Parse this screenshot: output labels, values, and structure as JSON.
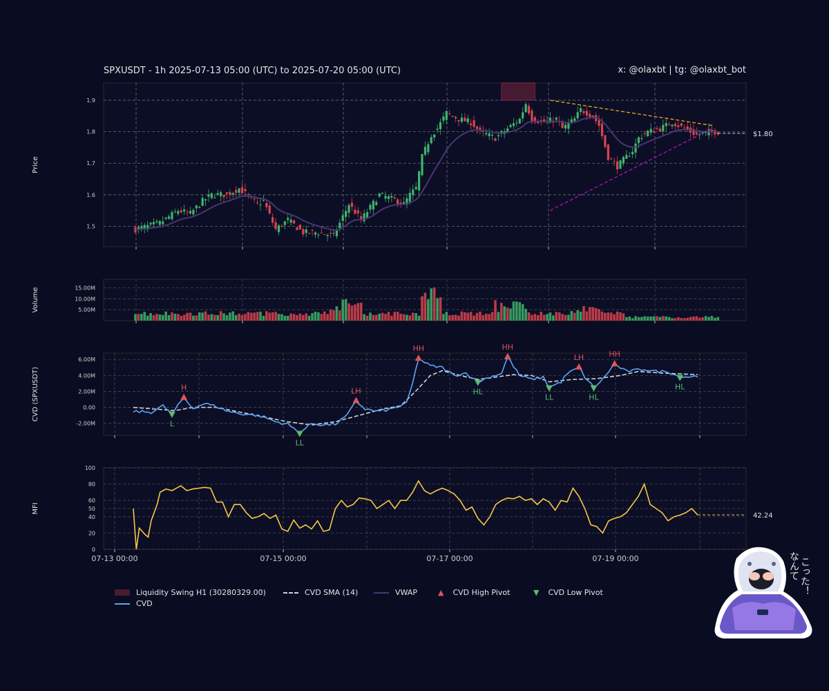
{
  "header": {
    "title": "SPXUSDT - 1h 2025-07-13 05:00 (UTC) to 2025-07-20 05:00 (UTC)",
    "credit": "x: @olaxbt | tg: @olaxbt_bot"
  },
  "colors": {
    "background": "#0a0c21",
    "bull": "#3fb46a",
    "bear": "#d9444f",
    "cvd": "#5aa7f2",
    "cvd_sma": "#cfd4dc",
    "vwap": "#4a3670",
    "mfi": "#f7c744",
    "resistance": "#f2a81d",
    "support": "#b012b8",
    "liquidity_zone": "#5a1f35",
    "pivot_high": "#e0535c",
    "pivot_low": "#5cba6e"
  },
  "chart_data": [
    {
      "panel": "price",
      "type": "candlestick",
      "ylabel": "Price",
      "ylim": [
        1.435,
        1.955
      ],
      "yticks": [
        "1.5",
        "1.6",
        "1.7",
        "1.8",
        "1.9"
      ],
      "x_range": [
        "2025-07-13 05:00",
        "2025-07-20 05:00"
      ],
      "interval": "1h",
      "candle_count": 169,
      "last_price_label": "$1.80",
      "last_price": 1.795,
      "close_anchors": [
        [
          0,
          1.49
        ],
        [
          8,
          1.51
        ],
        [
          14,
          1.55
        ],
        [
          18,
          1.54
        ],
        [
          22,
          1.58
        ],
        [
          25,
          1.6
        ],
        [
          30,
          1.6
        ],
        [
          34,
          1.62
        ],
        [
          40,
          1.57
        ],
        [
          42,
          1.58
        ],
        [
          46,
          1.49
        ],
        [
          50,
          1.52
        ],
        [
          55,
          1.48
        ],
        [
          60,
          1.48
        ],
        [
          65,
          1.47
        ],
        [
          70,
          1.57
        ],
        [
          74,
          1.52
        ],
        [
          80,
          1.6
        ],
        [
          86,
          1.58
        ],
        [
          88,
          1.57
        ],
        [
          90,
          1.6
        ],
        [
          92,
          1.62
        ],
        [
          94,
          1.72
        ],
        [
          97,
          1.79
        ],
        [
          99,
          1.81
        ],
        [
          102,
          1.86
        ],
        [
          106,
          1.84
        ],
        [
          110,
          1.83
        ],
        [
          113,
          1.8
        ],
        [
          118,
          1.78
        ],
        [
          122,
          1.81
        ],
        [
          126,
          1.84
        ],
        [
          128,
          1.89
        ],
        [
          130,
          1.84
        ],
        [
          134,
          1.83
        ],
        [
          138,
          1.84
        ],
        [
          140,
          1.81
        ],
        [
          144,
          1.84
        ],
        [
          146,
          1.87
        ],
        [
          150,
          1.85
        ],
        [
          152,
          1.82
        ],
        [
          155,
          1.72
        ],
        [
          158,
          1.69
        ],
        [
          160,
          1.71
        ],
        [
          163,
          1.74
        ],
        [
          165,
          1.78
        ],
        [
          168,
          1.8
        ],
        [
          172,
          1.81
        ],
        [
          176,
          1.83
        ],
        [
          180,
          1.81
        ],
        [
          184,
          1.79
        ],
        [
          188,
          1.8
        ],
        [
          192,
          1.8
        ]
      ],
      "liquidity_zone": {
        "label": "Liquidity Swing H1 (30280329.00)",
        "low": 1.9,
        "high": 1.955,
        "from_hour": 120,
        "to_hour": 131
      },
      "resistance_line": {
        "from": [
          136,
          1.9
        ],
        "to": [
          189,
          1.82
        ]
      },
      "support_line": {
        "from": [
          136,
          1.55
        ],
        "to": [
          189,
          1.81
        ]
      }
    },
    {
      "panel": "volume",
      "type": "bar",
      "ylabel": "Volume",
      "ylim": [
        0,
        19000000
      ],
      "yticks": [
        "5.00M",
        "10.00M",
        "15.00M"
      ]
    },
    {
      "panel": "cvd",
      "type": "line",
      "ylabel": "CVD (SPXUSDT)",
      "ylim": [
        -3500000,
        6800000
      ],
      "yticks": [
        "-2.00M",
        "0.00",
        "2.00M",
        "4.00M",
        "6.00M"
      ],
      "series": [
        {
          "name": "CVD",
          "anchors": [
            [
              0,
              -0.5
            ],
            [
              6,
              -0.6
            ],
            [
              10,
              0.2
            ],
            [
              13,
              -0.8
            ],
            [
              17,
              1.2
            ],
            [
              20,
              -0.1
            ],
            [
              24,
              0.5
            ],
            [
              28,
              0.1
            ],
            [
              32,
              -0.5
            ],
            [
              36,
              -0.8
            ],
            [
              40,
              -0.9
            ],
            [
              44,
              -1.2
            ],
            [
              48,
              -1.8
            ],
            [
              52,
              -2.1
            ],
            [
              56,
              -3.2
            ],
            [
              60,
              -2.0
            ],
            [
              64,
              -2.2
            ],
            [
              68,
              -2.1
            ],
            [
              72,
              -1.0
            ],
            [
              75,
              0.8
            ],
            [
              78,
              -0.2
            ],
            [
              82,
              -0.5
            ],
            [
              86,
              -0.3
            ],
            [
              90,
              0.2
            ],
            [
              92,
              0.5
            ],
            [
              94,
              3.0
            ],
            [
              96,
              6.1
            ],
            [
              100,
              5.2
            ],
            [
              104,
              5.0
            ],
            [
              108,
              4.0
            ],
            [
              112,
              4.3
            ],
            [
              116,
              3.2
            ],
            [
              120,
              3.8
            ],
            [
              124,
              4.3
            ],
            [
              126,
              6.3
            ],
            [
              130,
              4.0
            ],
            [
              134,
              3.5
            ],
            [
              138,
              3.8
            ],
            [
              140,
              2.5
            ],
            [
              144,
              3.2
            ],
            [
              146,
              4.2
            ],
            [
              150,
              5.0
            ],
            [
              152,
              3.8
            ],
            [
              155,
              2.5
            ],
            [
              158,
              3.5
            ],
            [
              160,
              4.5
            ],
            [
              162,
              5.4
            ],
            [
              166,
              4.5
            ],
            [
              172,
              4.8
            ],
            [
              176,
              4.5
            ],
            [
              180,
              4.5
            ],
            [
              184,
              3.8
            ],
            [
              190,
              3.9
            ]
          ]
        },
        {
          "name": "CVD SMA (14)",
          "anchors": [
            [
              0,
              0.0
            ],
            [
              14,
              -0.4
            ],
            [
              20,
              0.0
            ],
            [
              28,
              0.0
            ],
            [
              36,
              -0.6
            ],
            [
              44,
              -1.2
            ],
            [
              52,
              -1.8
            ],
            [
              60,
              -2.2
            ],
            [
              68,
              -1.8
            ],
            [
              76,
              -1.0
            ],
            [
              84,
              -0.2
            ],
            [
              90,
              0.2
            ],
            [
              95,
              2.0
            ],
            [
              100,
              4.0
            ],
            [
              104,
              4.6
            ],
            [
              110,
              4.0
            ],
            [
              116,
              3.5
            ],
            [
              122,
              3.8
            ],
            [
              128,
              4.1
            ],
            [
              134,
              4.0
            ],
            [
              140,
              3.2
            ],
            [
              148,
              3.5
            ],
            [
              156,
              3.6
            ],
            [
              164,
              4.0
            ],
            [
              170,
              4.5
            ],
            [
              178,
              4.3
            ],
            [
              190,
              4.1
            ]
          ]
        }
      ],
      "pivots": [
        {
          "label": "H",
          "kind": "high",
          "x": 17,
          "y": 1.2
        },
        {
          "label": "L",
          "kind": "low",
          "x": 13,
          "y": -0.8
        },
        {
          "label": "LL",
          "kind": "low",
          "x": 56,
          "y": -3.2
        },
        {
          "label": "LH",
          "kind": "high",
          "x": 75,
          "y": 0.8
        },
        {
          "label": "HH",
          "kind": "high",
          "x": 96,
          "y": 6.1
        },
        {
          "label": "HL",
          "kind": "low",
          "x": 116,
          "y": 3.2
        },
        {
          "label": "HH",
          "kind": "high",
          "x": 126,
          "y": 6.3
        },
        {
          "label": "LL",
          "kind": "low",
          "x": 140,
          "y": 2.5
        },
        {
          "label": "LH",
          "kind": "high",
          "x": 150,
          "y": 5.0
        },
        {
          "label": "HL",
          "kind": "low",
          "x": 155,
          "y": 2.5
        },
        {
          "label": "HH",
          "kind": "high",
          "x": 162,
          "y": 5.4
        },
        {
          "label": "HL",
          "kind": "low",
          "x": 184,
          "y": 3.8
        }
      ]
    },
    {
      "panel": "mfi",
      "type": "line",
      "ylabel": "MFI",
      "ylim": [
        0,
        100
      ],
      "yticks": [
        "0",
        "20",
        "40",
        "50",
        "60",
        "80",
        "100"
      ],
      "last_value_label": "42.24",
      "last_value": 42.24,
      "series": [
        {
          "name": "MFI",
          "anchors": [
            [
              0,
              50
            ],
            [
              1,
              0
            ],
            [
              2,
              26
            ],
            [
              4,
              18
            ],
            [
              5,
              15
            ],
            [
              6,
              35
            ],
            [
              8,
              55
            ],
            [
              9,
              70
            ],
            [
              11,
              74
            ],
            [
              13,
              72
            ],
            [
              16,
              78
            ],
            [
              18,
              72
            ],
            [
              20,
              74
            ],
            [
              22,
              75
            ],
            [
              24,
              76
            ],
            [
              26,
              75
            ],
            [
              28,
              58
            ],
            [
              30,
              58
            ],
            [
              32,
              40
            ],
            [
              34,
              55
            ],
            [
              36,
              55
            ],
            [
              38,
              45
            ],
            [
              40,
              38
            ],
            [
              42,
              40
            ],
            [
              44,
              44
            ],
            [
              46,
              38
            ],
            [
              48,
              42
            ],
            [
              50,
              25
            ],
            [
              52,
              22
            ],
            [
              54,
              36
            ],
            [
              56,
              26
            ],
            [
              58,
              30
            ],
            [
              60,
              25
            ],
            [
              62,
              35
            ],
            [
              64,
              22
            ],
            [
              66,
              24
            ],
            [
              68,
              50
            ],
            [
              70,
              60
            ],
            [
              72,
              52
            ],
            [
              74,
              55
            ],
            [
              76,
              63
            ],
            [
              78,
              62
            ],
            [
              80,
              60
            ],
            [
              82,
              50
            ],
            [
              84,
              55
            ],
            [
              86,
              60
            ],
            [
              88,
              50
            ],
            [
              90,
              60
            ],
            [
              92,
              60
            ],
            [
              94,
              70
            ],
            [
              96,
              84
            ],
            [
              98,
              72
            ],
            [
              100,
              68
            ],
            [
              102,
              72
            ],
            [
              104,
              75
            ],
            [
              106,
              72
            ],
            [
              108,
              68
            ],
            [
              110,
              60
            ],
            [
              112,
              48
            ],
            [
              114,
              52
            ],
            [
              116,
              38
            ],
            [
              118,
              30
            ],
            [
              120,
              40
            ],
            [
              122,
              55
            ],
            [
              124,
              60
            ],
            [
              126,
              63
            ],
            [
              128,
              62
            ],
            [
              130,
              65
            ],
            [
              132,
              60
            ],
            [
              134,
              62
            ],
            [
              136,
              55
            ],
            [
              138,
              62
            ],
            [
              140,
              58
            ],
            [
              142,
              48
            ],
            [
              144,
              60
            ],
            [
              146,
              58
            ],
            [
              148,
              75
            ],
            [
              150,
              65
            ],
            [
              152,
              50
            ],
            [
              154,
              30
            ],
            [
              156,
              28
            ],
            [
              158,
              20
            ],
            [
              160,
              35
            ],
            [
              162,
              38
            ],
            [
              164,
              40
            ],
            [
              166,
              45
            ],
            [
              168,
              55
            ],
            [
              170,
              65
            ],
            [
              172,
              80
            ],
            [
              174,
              55
            ],
            [
              176,
              50
            ],
            [
              178,
              45
            ],
            [
              180,
              35
            ],
            [
              182,
              40
            ],
            [
              184,
              42
            ],
            [
              186,
              45
            ],
            [
              188,
              50
            ],
            [
              190,
              42
            ]
          ]
        }
      ]
    }
  ],
  "x_axis": {
    "ticks": [
      "07-13 00:00",
      "07-15 00:00",
      "07-17 00:00",
      "07-19 00:00"
    ]
  },
  "legend": {
    "liquidity": "Liquidity Swing H1 (30280329.00)",
    "cvd_sma": "CVD SMA (14)",
    "vwap": "VWAP",
    "high_pivot": "CVD High Pivot",
    "low_pivot": "CVD Low Pivot",
    "cvd": "CVD"
  },
  "sticker": {
    "text_line1": "こった！",
    "text_line2": "なんて"
  }
}
